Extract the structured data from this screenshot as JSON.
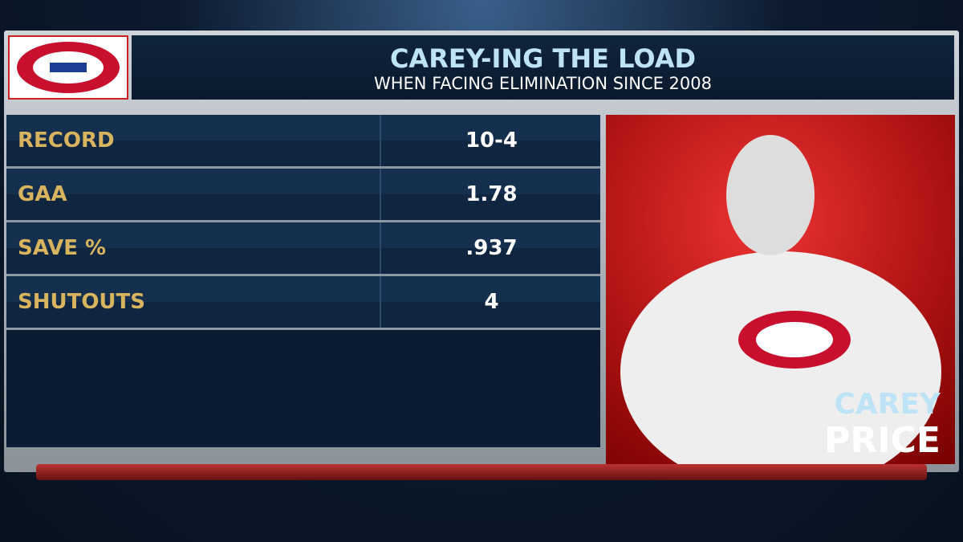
{
  "header": {
    "title": "CAREY-ING THE LOAD",
    "subtitle": "WHEN FACING ELIMINATION SINCE 2008"
  },
  "table": {
    "rows": [
      [
        "RECORD",
        "10-4"
      ],
      [
        "GAA",
        "1.78"
      ],
      [
        "SAVE %",
        ".937"
      ],
      [
        "SHUTOUTS",
        "4"
      ]
    ]
  },
  "player": {
    "first_name": "CAREY",
    "last_name": "PRICE"
  }
}
